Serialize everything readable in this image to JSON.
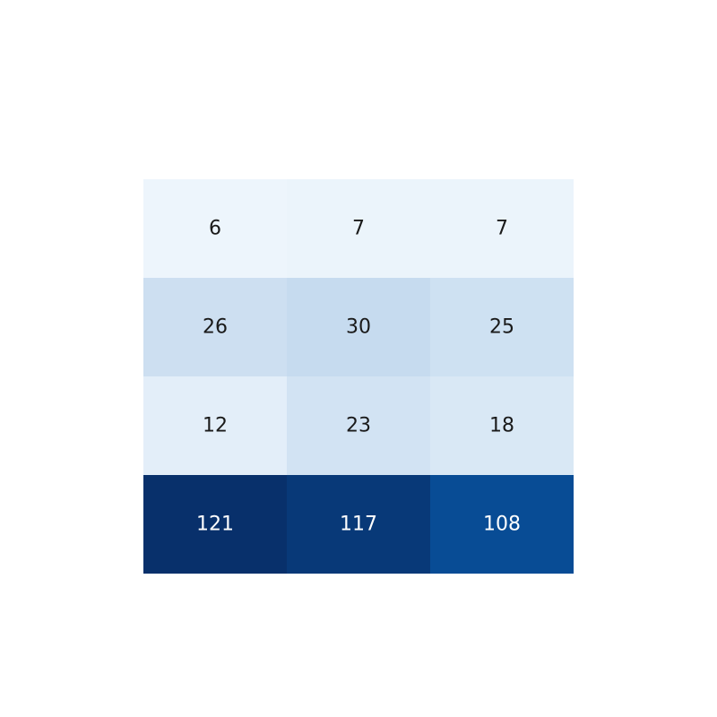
{
  "chart_data": {
    "type": "heatmap",
    "rows": 4,
    "cols": 3,
    "values": [
      [
        6,
        7,
        7
      ],
      [
        26,
        30,
        25
      ],
      [
        12,
        23,
        18
      ],
      [
        121,
        117,
        108
      ]
    ],
    "colormap": "Blues",
    "color_range": [
      0,
      121
    ],
    "grid": false,
    "legend": "none"
  }
}
